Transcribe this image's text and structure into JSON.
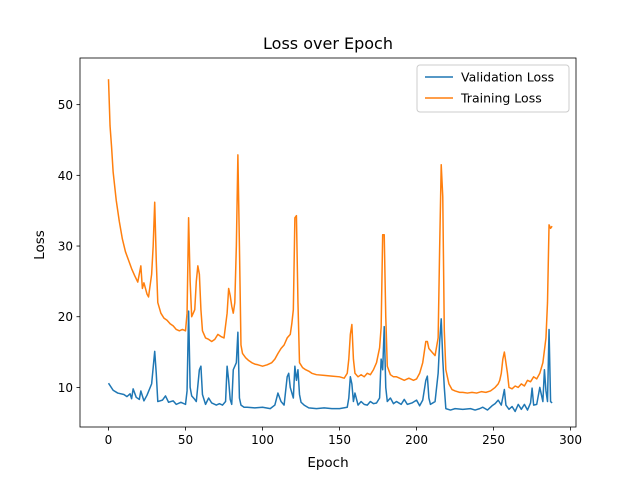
{
  "chart_data": {
    "type": "line",
    "title": "Loss over Epoch",
    "xlabel": "Epoch",
    "ylabel": "Loss",
    "xlim": [
      -18.5,
      303.5
    ],
    "ylim": [
      4.4,
      56.6
    ],
    "xticks": [
      0,
      50,
      100,
      150,
      200,
      250,
      300
    ],
    "yticks": [
      10,
      20,
      30,
      40,
      50
    ],
    "grid": false,
    "legend_position": "top-right",
    "series": [
      {
        "name": "Validation Loss",
        "color": "#1f77b4",
        "points": [
          [
            0,
            10.6
          ],
          [
            3,
            9.6
          ],
          [
            6,
            9.2
          ],
          [
            10,
            9.0
          ],
          [
            12,
            8.7
          ],
          [
            14,
            9.1
          ],
          [
            15,
            8.4
          ],
          [
            16,
            9.8
          ],
          [
            18,
            8.6
          ],
          [
            20,
            8.3
          ],
          [
            21,
            9.5
          ],
          [
            23,
            8.1
          ],
          [
            25,
            8.9
          ],
          [
            28,
            10.5
          ],
          [
            30,
            15.1
          ],
          [
            31,
            12
          ],
          [
            32,
            8.0
          ],
          [
            35,
            8.2
          ],
          [
            37,
            8.8
          ],
          [
            39,
            7.9
          ],
          [
            42,
            8.1
          ],
          [
            44,
            7.6
          ],
          [
            47,
            7.9
          ],
          [
            50,
            7.6
          ],
          [
            51,
            9.5
          ],
          [
            52,
            20.8
          ],
          [
            53,
            10
          ],
          [
            54,
            8.8
          ],
          [
            56,
            8.3
          ],
          [
            57,
            8.0
          ],
          [
            59,
            12.5
          ],
          [
            60,
            13.0
          ],
          [
            61,
            9
          ],
          [
            63,
            7.6
          ],
          [
            65,
            8.5
          ],
          [
            67,
            7.8
          ],
          [
            70,
            7.5
          ],
          [
            72,
            7.7
          ],
          [
            74,
            7.5
          ],
          [
            76,
            8.0
          ],
          [
            77,
            13.0
          ],
          [
            78,
            11
          ],
          [
            79,
            8.3
          ],
          [
            80,
            7.6
          ],
          [
            81,
            12.5
          ],
          [
            83,
            13.5
          ],
          [
            84,
            17.8
          ],
          [
            85,
            8.5
          ],
          [
            86,
            7.5
          ],
          [
            88,
            7.2
          ],
          [
            90,
            7.2
          ],
          [
            95,
            7.1
          ],
          [
            100,
            7.2
          ],
          [
            105,
            7.0
          ],
          [
            108,
            7.5
          ],
          [
            110,
            9.2
          ],
          [
            112,
            8.0
          ],
          [
            114,
            7.5
          ],
          [
            116,
            11.5
          ],
          [
            117,
            12.0
          ],
          [
            118,
            10
          ],
          [
            120,
            8.5
          ],
          [
            121,
            13.0
          ],
          [
            122,
            11
          ],
          [
            123,
            12.5
          ],
          [
            124,
            9
          ],
          [
            125,
            7.9
          ],
          [
            127,
            7.5
          ],
          [
            130,
            7.1
          ],
          [
            135,
            7.0
          ],
          [
            140,
            7.1
          ],
          [
            145,
            7.0
          ],
          [
            150,
            7.0
          ],
          [
            155,
            7.2
          ],
          [
            156,
            8.5
          ],
          [
            157,
            11.5
          ],
          [
            158,
            10.5
          ],
          [
            159,
            8.0
          ],
          [
            160,
            9.2
          ],
          [
            162,
            7.5
          ],
          [
            164,
            8.0
          ],
          [
            166,
            7.6
          ],
          [
            168,
            7.5
          ],
          [
            170,
            8.0
          ],
          [
            172,
            7.7
          ],
          [
            174,
            7.8
          ],
          [
            176,
            8.5
          ],
          [
            177,
            14.0
          ],
          [
            178,
            12.5
          ],
          [
            179,
            18.6
          ],
          [
            180,
            10
          ],
          [
            181,
            8.0
          ],
          [
            183,
            8.5
          ],
          [
            185,
            7.7
          ],
          [
            187,
            8.0
          ],
          [
            190,
            7.6
          ],
          [
            192,
            8.3
          ],
          [
            194,
            7.6
          ],
          [
            197,
            7.8
          ],
          [
            200,
            8.2
          ],
          [
            202,
            7.4
          ],
          [
            204,
            8.2
          ],
          [
            206,
            11.0
          ],
          [
            207,
            11.6
          ],
          [
            208,
            8.5
          ],
          [
            209,
            7.6
          ],
          [
            212,
            8.0
          ],
          [
            214,
            12.0
          ],
          [
            215,
            16.5
          ],
          [
            216,
            19.7
          ],
          [
            217,
            14
          ],
          [
            218,
            10.0
          ],
          [
            219,
            7.0
          ],
          [
            222,
            6.8
          ],
          [
            225,
            7.0
          ],
          [
            230,
            6.9
          ],
          [
            235,
            7.0
          ],
          [
            238,
            6.8
          ],
          [
            241,
            7.0
          ],
          [
            243,
            7.2
          ],
          [
            246,
            6.8
          ],
          [
            249,
            7.4
          ],
          [
            251,
            7.7
          ],
          [
            253,
            8.2
          ],
          [
            255,
            7.5
          ],
          [
            257,
            9.7
          ],
          [
            258,
            7.5
          ],
          [
            260,
            6.9
          ],
          [
            262,
            7.3
          ],
          [
            264,
            6.6
          ],
          [
            266,
            7.6
          ],
          [
            268,
            6.9
          ],
          [
            270,
            7.6
          ],
          [
            272,
            6.8
          ],
          [
            274,
            7.8
          ],
          [
            275,
            9.9
          ],
          [
            276,
            7.5
          ],
          [
            278,
            7.6
          ],
          [
            280,
            10.0
          ],
          [
            282,
            8.0
          ],
          [
            283,
            12.5
          ],
          [
            284,
            9.5
          ],
          [
            285,
            8.0
          ],
          [
            286,
            18.2
          ],
          [
            287,
            8.0
          ],
          [
            288,
            7.8
          ]
        ]
      },
      {
        "name": "Training Loss",
        "color": "#ff7f0e",
        "points": [
          [
            0,
            53.6
          ],
          [
            1,
            47
          ],
          [
            2,
            44
          ],
          [
            3,
            40.5
          ],
          [
            5,
            36.5
          ],
          [
            7,
            33.5
          ],
          [
            9,
            31
          ],
          [
            11,
            29.2
          ],
          [
            13,
            28.0
          ],
          [
            15,
            26.8
          ],
          [
            17,
            25.8
          ],
          [
            19,
            24.9
          ],
          [
            21,
            27.2
          ],
          [
            22,
            24.0
          ],
          [
            23,
            24.8
          ],
          [
            25,
            23.2
          ],
          [
            26,
            22.8
          ],
          [
            28,
            26.0
          ],
          [
            29,
            30
          ],
          [
            30,
            36.2
          ],
          [
            31,
            28
          ],
          [
            32,
            22.0
          ],
          [
            34,
            20.5
          ],
          [
            36,
            19.8
          ],
          [
            38,
            19.5
          ],
          [
            40,
            19.0
          ],
          [
            42,
            18.7
          ],
          [
            44,
            18.2
          ],
          [
            46,
            18.0
          ],
          [
            48,
            18.2
          ],
          [
            50,
            18.0
          ],
          [
            51,
            20.5
          ],
          [
            52,
            34.0
          ],
          [
            53,
            25
          ],
          [
            54,
            20.0
          ],
          [
            56,
            21.0
          ],
          [
            57,
            25.0
          ],
          [
            58,
            27.2
          ],
          [
            59,
            26.0
          ],
          [
            60,
            21.0
          ],
          [
            61,
            18.0
          ],
          [
            63,
            17.0
          ],
          [
            65,
            16.8
          ],
          [
            67,
            16.5
          ],
          [
            69,
            16.8
          ],
          [
            71,
            17.5
          ],
          [
            73,
            17.2
          ],
          [
            75,
            17.0
          ],
          [
            77,
            20.5
          ],
          [
            78,
            24.0
          ],
          [
            79,
            23.0
          ],
          [
            80,
            21.5
          ],
          [
            81,
            20.5
          ],
          [
            82,
            22.0
          ],
          [
            83,
            30.0
          ],
          [
            84,
            42.9
          ],
          [
            85,
            30
          ],
          [
            86,
            16.0
          ],
          [
            87,
            14.8
          ],
          [
            89,
            14.2
          ],
          [
            91,
            13.8
          ],
          [
            93,
            13.5
          ],
          [
            95,
            13.3
          ],
          [
            97,
            13.2
          ],
          [
            100,
            13.0
          ],
          [
            103,
            13.2
          ],
          [
            106,
            13.5
          ],
          [
            108,
            14.0
          ],
          [
            110,
            14.8
          ],
          [
            112,
            15.5
          ],
          [
            114,
            16.0
          ],
          [
            116,
            17.0
          ],
          [
            118,
            17.5
          ],
          [
            119,
            19.0
          ],
          [
            120,
            21.0
          ],
          [
            121,
            34.0
          ],
          [
            122,
            34.3
          ],
          [
            123,
            22
          ],
          [
            124,
            13.5
          ],
          [
            126,
            12.8
          ],
          [
            128,
            12.5
          ],
          [
            130,
            12.3
          ],
          [
            132,
            12.0
          ],
          [
            135,
            11.8
          ],
          [
            140,
            11.7
          ],
          [
            145,
            11.6
          ],
          [
            150,
            11.5
          ],
          [
            153,
            11.3
          ],
          [
            155,
            12.0
          ],
          [
            156,
            14.0
          ],
          [
            157,
            17.5
          ],
          [
            158,
            18.9
          ],
          [
            159,
            14
          ],
          [
            160,
            12.0
          ],
          [
            162,
            11.5
          ],
          [
            164,
            11.8
          ],
          [
            166,
            11.5
          ],
          [
            168,
            12.0
          ],
          [
            170,
            11.8
          ],
          [
            172,
            12.5
          ],
          [
            174,
            13.5
          ],
          [
            176,
            15.6
          ],
          [
            177,
            18.5
          ],
          [
            178,
            31.6
          ],
          [
            179,
            31.6
          ],
          [
            180,
            20
          ],
          [
            181,
            13.0
          ],
          [
            183,
            11.8
          ],
          [
            185,
            11.5
          ],
          [
            187,
            11.5
          ],
          [
            189,
            11.3
          ],
          [
            192,
            11.0
          ],
          [
            195,
            11.3
          ],
          [
            198,
            11.0
          ],
          [
            200,
            11.2
          ],
          [
            202,
            12.0
          ],
          [
            204,
            13.5
          ],
          [
            206,
            16.5
          ],
          [
            207,
            16.5
          ],
          [
            208,
            15.5
          ],
          [
            210,
            15.0
          ],
          [
            212,
            14.5
          ],
          [
            214,
            17.0
          ],
          [
            215,
            30.0
          ],
          [
            216,
            41.5
          ],
          [
            217,
            37.0
          ],
          [
            218,
            18
          ],
          [
            219,
            12.5
          ],
          [
            221,
            10.5
          ],
          [
            223,
            9.7
          ],
          [
            225,
            9.5
          ],
          [
            228,
            9.3
          ],
          [
            230,
            9.3
          ],
          [
            233,
            9.2
          ],
          [
            236,
            9.3
          ],
          [
            239,
            9.2
          ],
          [
            242,
            9.4
          ],
          [
            245,
            9.3
          ],
          [
            248,
            9.5
          ],
          [
            251,
            10.0
          ],
          [
            253,
            10.5
          ],
          [
            254,
            11.0
          ],
          [
            255,
            12.0
          ],
          [
            256,
            14.0
          ],
          [
            257,
            15.0
          ],
          [
            258,
            13.5
          ],
          [
            259,
            12.0
          ],
          [
            260,
            10.0
          ],
          [
            262,
            9.8
          ],
          [
            264,
            10.2
          ],
          [
            266,
            10.0
          ],
          [
            268,
            10.5
          ],
          [
            270,
            10.2
          ],
          [
            272,
            11.0
          ],
          [
            274,
            10.8
          ],
          [
            276,
            11.5
          ],
          [
            278,
            11.2
          ],
          [
            280,
            12.0
          ],
          [
            282,
            13.5
          ],
          [
            284,
            17.0
          ],
          [
            285,
            22.0
          ],
          [
            286,
            33.0
          ],
          [
            287,
            32.5
          ],
          [
            288,
            32.8
          ]
        ]
      }
    ]
  }
}
